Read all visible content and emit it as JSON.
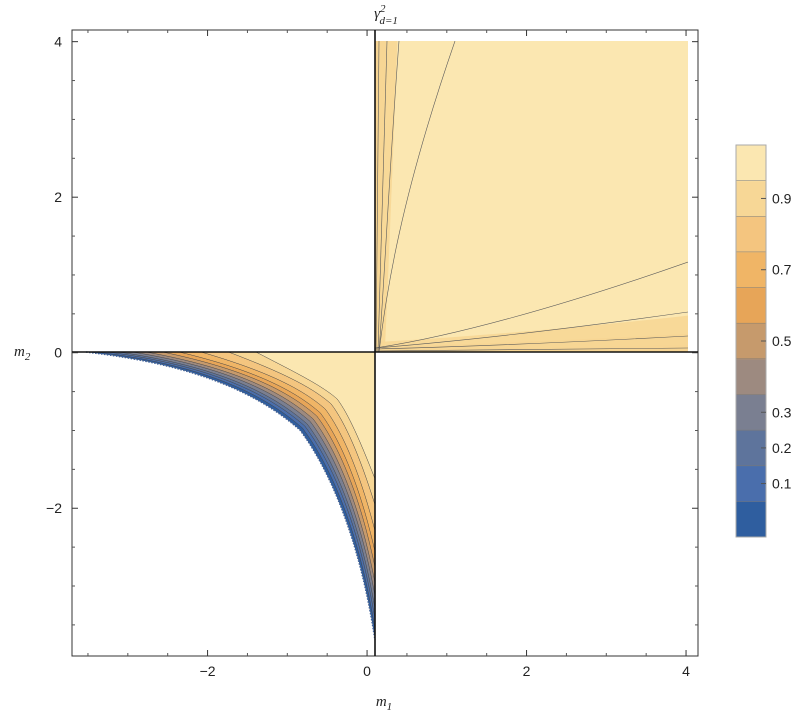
{
  "chart_data": {
    "type": "heatmap",
    "subtype": "contour",
    "title": {
      "base": "γ",
      "sup": "2",
      "sub": "d=1"
    },
    "xlabel": {
      "base": "m",
      "sub": "1"
    },
    "ylabel": {
      "base": "m",
      "sub": "2"
    },
    "xlim": [
      -3.7,
      4.15
    ],
    "ylim": [
      -3.9,
      4.15
    ],
    "xticks": [
      -2,
      0,
      2,
      4
    ],
    "yticks": [
      -2,
      0,
      2,
      4
    ],
    "xtick_labels": [
      "−2",
      "0",
      "2",
      "4"
    ],
    "ytick_labels": [
      "−2",
      "0",
      "2",
      "4"
    ],
    "grid": false,
    "colorbar": {
      "placement": "right",
      "range": [
        0,
        1
      ],
      "ticks": [
        0.1,
        0.2,
        0.3,
        0.5,
        0.7,
        0.9
      ],
      "tick_labels": [
        "0.1",
        "0.2",
        "0.3",
        "0.5",
        "0.7",
        "0.9"
      ],
      "levels": [
        0.0,
        0.1,
        0.2,
        0.3,
        0.4,
        0.5,
        0.6,
        0.7,
        0.8,
        0.9,
        1.0
      ],
      "colors": [
        "#2f5e9f",
        "#4a6eac",
        "#5e749c",
        "#7a7f91",
        "#9d8a80",
        "#c69a6c",
        "#e7a558",
        "#f0b566",
        "#f4c57f",
        "#f7d796",
        "#fbe7b1"
      ]
    },
    "regions": [
      {
        "name": "first quadrant",
        "x": [
          0,
          4
        ],
        "y": [
          0,
          4
        ],
        "values": "0.9–1.0 interior; falls toward 0.7 along the axes"
      },
      {
        "name": "third quadrant wedge",
        "x": [
          -3.7,
          0
        ],
        "y": [
          -3.7,
          0
        ],
        "values": "0.0–1.0; low (blue) at curved boundary, high near (-0.3,-0.5)"
      }
    ]
  }
}
